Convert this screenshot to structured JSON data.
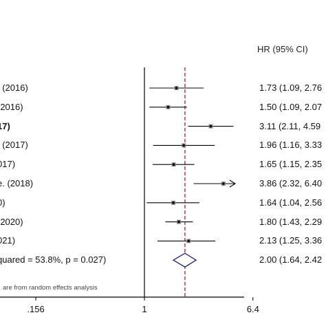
{
  "chart_data": {
    "type": "forest",
    "column_header": "HR (95% CI)",
    "x_scale": "log",
    "reference_line": 1,
    "pooled_line": 2.0,
    "xticks": [
      {
        "value": 0.156,
        "label": ".156"
      },
      {
        "value": 1,
        "label": "1"
      },
      {
        "value": 6.4,
        "label": "6.4"
      }
    ],
    "studies": [
      {
        "label": ". (2016)",
        "hr": 1.73,
        "lo": 1.09,
        "hi": 2.76,
        "estimate_text": "1.73 (1.09, 2.76",
        "bold": false
      },
      {
        "label": "(2016)",
        "hr": 1.5,
        "lo": 1.09,
        "hi": 2.07,
        "estimate_text": "1.50 (1.09, 2.07",
        "bold": false
      },
      {
        "label": "17)",
        "hr": 3.11,
        "lo": 2.11,
        "hi": 4.59,
        "estimate_text": "3.11 (2.11, 4.59",
        "bold": true
      },
      {
        "label": ". (2017)",
        "hr": 1.96,
        "lo": 1.16,
        "hi": 3.33,
        "estimate_text": "1.96 (1.16, 3.33",
        "bold": false
      },
      {
        "label": "017)",
        "hr": 1.65,
        "lo": 1.15,
        "hi": 2.35,
        "estimate_text": "1.65 (1.15, 2.35",
        "bold": false
      },
      {
        "label": "e. (2018)",
        "hr": 3.86,
        "lo": 2.32,
        "hi": 6.4,
        "estimate_text": "3.86 (2.32, 6.40",
        "bold": false
      },
      {
        "label": "0)",
        "hr": 1.64,
        "lo": 1.04,
        "hi": 2.56,
        "estimate_text": "1.64 (1.04, 2.56",
        "bold": false
      },
      {
        "label": "(2020)",
        "hr": 1.8,
        "lo": 1.43,
        "hi": 2.29,
        "estimate_text": "1.80 (1.43, 2.29",
        "bold": false
      },
      {
        "label": "021)",
        "hr": 2.13,
        "lo": 1.25,
        "hi": 3.36,
        "estimate_text": "2.13 (1.25, 3.36",
        "bold": false
      }
    ],
    "overall": {
      "label": "quared = 53.8%, p = 0.027)",
      "hr": 2.0,
      "lo": 1.64,
      "hi": 2.42,
      "estimate_text": "2.00 (1.64, 2.42"
    },
    "footnote": "are from random effects analysis"
  }
}
